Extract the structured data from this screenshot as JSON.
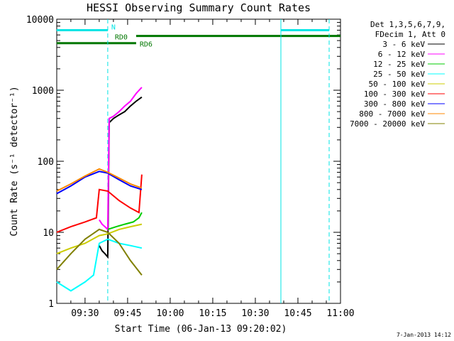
{
  "chart_data": {
    "type": "line",
    "title": "HESSI Observing Summary Count Rates",
    "xlabel": "Start Time (06-Jan-13 09:20:02)",
    "ylabel": "Count Rate (s⁻¹ detector⁻¹)",
    "yscale": "log",
    "ylim": [
      1,
      10000
    ],
    "xlim": [
      "09:20:02",
      "11:00:00"
    ],
    "x_ticks": [
      "09:30",
      "09:45",
      "10:00",
      "10:15",
      "10:30",
      "10:45",
      "11:00"
    ],
    "y_ticks": [
      "1",
      "10",
      "100",
      "1000",
      "10000"
    ],
    "footer": "7-Jan-2013 14:12",
    "legend": {
      "position": "right",
      "header": [
        "Det 1,3,5,6,7,9,",
        "FDecim 1, Att 0"
      ],
      "entries": [
        {
          "label": "3 - 6 keV",
          "color": "#000000"
        },
        {
          "label": "6 - 12 keV",
          "color": "#ff00ff"
        },
        {
          "label": "12 - 25 keV",
          "color": "#00cc00"
        },
        {
          "label": "25 - 50 keV",
          "color": "#00ffff"
        },
        {
          "label": "50 - 100 keV",
          "color": "#cccc00"
        },
        {
          "label": "100 - 300 keV",
          "color": "#ff0000"
        },
        {
          "label": "300 - 800 keV",
          "color": "#0000ff"
        },
        {
          "label": "800 - 7000 keV",
          "color": "#ff8800"
        },
        {
          "label": "7000 - 20000 keV",
          "color": "#808000"
        }
      ]
    },
    "flags": [
      {
        "label": "N",
        "color": "#00e5e5",
        "segments": [
          [
            "09:20",
            "09:38"
          ],
          [
            "10:39",
            "10:56"
          ]
        ],
        "y": 7000
      },
      {
        "label": "RD0",
        "color": "#007700",
        "segments": [
          [
            "09:48",
            "11:00"
          ]
        ],
        "y": 5800
      },
      {
        "label": "RD6",
        "color": "#007700",
        "segments": [
          [
            "09:20",
            "09:48"
          ]
        ],
        "y": 4600
      }
    ],
    "vlines": [
      {
        "t": "09:38",
        "style": "dashed",
        "color": "#00e5e5"
      },
      {
        "t": "10:39",
        "style": "solid",
        "color": "#00e5e5"
      },
      {
        "t": "10:56",
        "style": "dashed",
        "color": "#00e5e5"
      }
    ],
    "series": [
      {
        "name": "3 - 6 keV",
        "color": "#000000",
        "points": [
          [
            "09:35",
            6.5
          ],
          [
            "09:36",
            5.5
          ],
          [
            "09:37",
            5
          ],
          [
            "09:38",
            4.5
          ],
          [
            "09:38:30",
            350
          ],
          [
            "09:40",
            400
          ],
          [
            "09:42",
            450
          ],
          [
            "09:44",
            500
          ],
          [
            "09:46",
            600
          ],
          [
            "09:48",
            700
          ],
          [
            "09:50",
            800
          ]
        ]
      },
      {
        "name": "6 - 12 keV",
        "color": "#ff00ff",
        "points": [
          [
            "09:35",
            15
          ],
          [
            "09:36",
            13
          ],
          [
            "09:37",
            12
          ],
          [
            "09:38",
            11
          ],
          [
            "09:38:30",
            400
          ],
          [
            "09:40",
            430
          ],
          [
            "09:42",
            500
          ],
          [
            "09:44",
            600
          ],
          [
            "09:46",
            700
          ],
          [
            "09:48",
            900
          ],
          [
            "09:50",
            1100
          ]
        ]
      },
      {
        "name": "12 - 25 keV",
        "color": "#00cc00",
        "points": [
          [
            "09:38",
            11
          ],
          [
            "09:41",
            12
          ],
          [
            "09:44",
            13
          ],
          [
            "09:47",
            14
          ],
          [
            "09:49",
            16
          ],
          [
            "09:50",
            19
          ]
        ]
      },
      {
        "name": "25 - 50 keV",
        "color": "#00ffff",
        "points": [
          [
            "09:20",
            2
          ],
          [
            "09:25",
            1.5
          ],
          [
            "09:30",
            2
          ],
          [
            "09:33",
            2.5
          ],
          [
            "09:35",
            7
          ],
          [
            "09:38",
            8
          ],
          [
            "09:42",
            7
          ],
          [
            "09:46",
            6.5
          ],
          [
            "09:50",
            6
          ]
        ]
      },
      {
        "name": "50 - 100 keV",
        "color": "#cccc00",
        "points": [
          [
            "09:20",
            5
          ],
          [
            "09:25",
            6
          ],
          [
            "09:30",
            7
          ],
          [
            "09:35",
            9
          ],
          [
            "09:38",
            9.5
          ],
          [
            "09:42",
            11
          ],
          [
            "09:46",
            12
          ],
          [
            "09:50",
            13
          ]
        ]
      },
      {
        "name": "100 - 300 keV",
        "color": "#ff0000",
        "points": [
          [
            "09:20",
            10
          ],
          [
            "09:25",
            12
          ],
          [
            "09:30",
            14
          ],
          [
            "09:34",
            16
          ],
          [
            "09:35",
            40
          ],
          [
            "09:38",
            38
          ],
          [
            "09:42",
            28
          ],
          [
            "09:46",
            22
          ],
          [
            "09:49",
            19
          ],
          [
            "09:50",
            65
          ]
        ]
      },
      {
        "name": "300 - 800 keV",
        "color": "#0000ff",
        "points": [
          [
            "09:20",
            35
          ],
          [
            "09:25",
            45
          ],
          [
            "09:30",
            60
          ],
          [
            "09:35",
            72
          ],
          [
            "09:38",
            68
          ],
          [
            "09:42",
            55
          ],
          [
            "09:46",
            45
          ],
          [
            "09:50",
            40
          ]
        ]
      },
      {
        "name": "800 - 7000 keV",
        "color": "#ff8800",
        "points": [
          [
            "09:20",
            38
          ],
          [
            "09:25",
            48
          ],
          [
            "09:30",
            62
          ],
          [
            "09:35",
            78
          ],
          [
            "09:38",
            70
          ],
          [
            "09:42",
            58
          ],
          [
            "09:46",
            48
          ],
          [
            "09:50",
            42
          ]
        ]
      },
      {
        "name": "7000 - 20000 keV",
        "color": "#808000",
        "points": [
          [
            "09:20",
            3
          ],
          [
            "09:25",
            5
          ],
          [
            "09:30",
            8
          ],
          [
            "09:35",
            11
          ],
          [
            "09:38",
            10
          ],
          [
            "09:42",
            7
          ],
          [
            "09:46",
            4
          ],
          [
            "09:50",
            2.5
          ]
        ]
      }
    ]
  }
}
